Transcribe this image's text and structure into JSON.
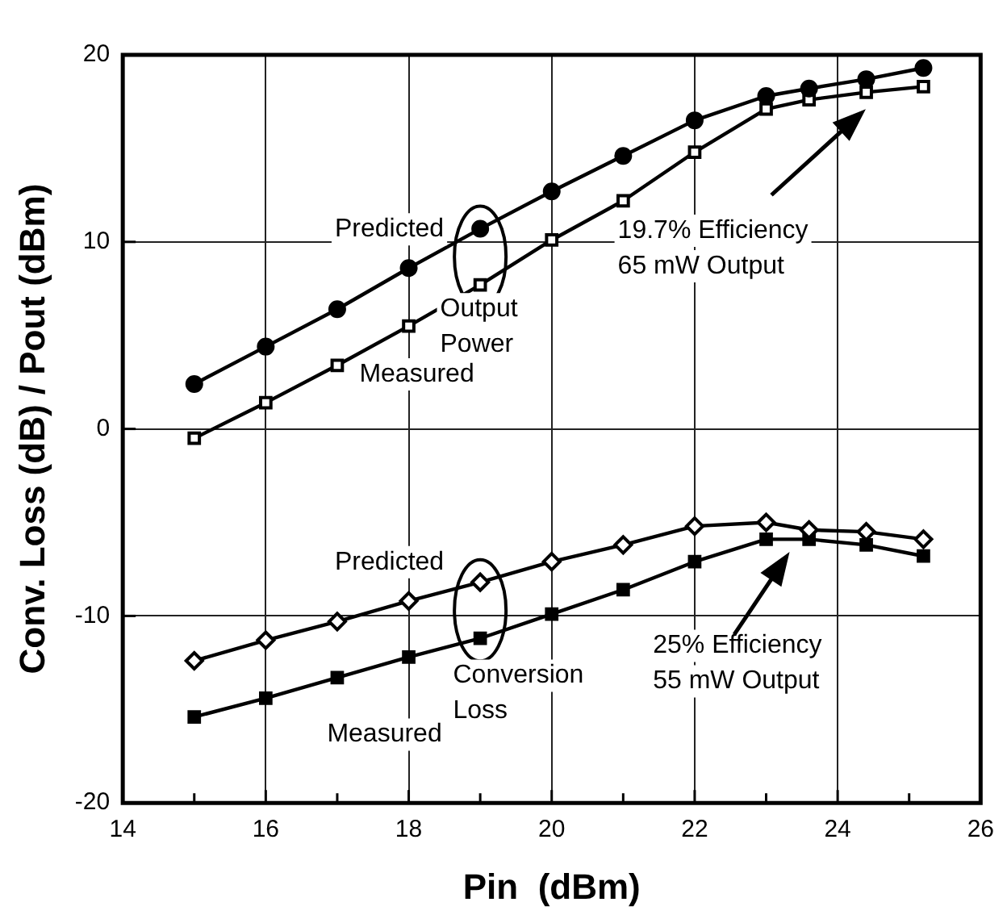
{
  "chart_data": {
    "type": "line",
    "xlabel": "Pin  (dBm)",
    "ylabel": "Conv. Loss (dB) / Pout (dBm)",
    "x": [
      15,
      16,
      17,
      18,
      19,
      20,
      21,
      22,
      23,
      23.6,
      24.4,
      25.2
    ],
    "series": [
      {
        "name": "Predicted",
        "color": "#000000",
        "marker": "circle",
        "values": [
          2.4,
          4.4,
          6.4,
          8.6,
          10.7,
          12.7,
          14.6,
          16.5,
          17.8,
          18.2,
          18.7,
          19.3
        ]
      },
      {
        "name": "Measured",
        "color": "#000000",
        "marker": "square",
        "values": [
          -0.5,
          1.4,
          3.4,
          5.5,
          7.7,
          10.1,
          12.2,
          14.8,
          17.1,
          17.6,
          18.0,
          18.3
        ]
      },
      {
        "name": "Predicted",
        "color": "#000000",
        "marker": "diamond",
        "values": [
          -12.4,
          -11.3,
          -10.3,
          -9.2,
          -8.2,
          -7.1,
          -6.2,
          -5.2,
          -5.0,
          -5.4,
          -5.5,
          -5.9
        ]
      },
      {
        "name": "Measured",
        "color": "#000000",
        "marker": "square",
        "values": [
          -15.4,
          -14.4,
          -13.3,
          -12.2,
          -11.2,
          -9.9,
          -8.6,
          -7.1,
          -5.9,
          -5.9,
          -6.2,
          -6.8
        ]
      }
    ],
    "xlim": [
      14,
      26
    ],
    "xticks": [
      14,
      {
        "value": 15,
        "label": null
      },
      16,
      {
        "value": 17,
        "label": null
      },
      18,
      {
        "value": 19,
        "label": null
      },
      20,
      {
        "value": 21,
        "label": null
      },
      22,
      {
        "value": 23,
        "label": null
      },
      24,
      {
        "value": 25,
        "label": null
      },
      26
    ],
    "ylim": [
      -20,
      20
    ],
    "yticks": [
      -20,
      -10,
      0,
      10,
      20
    ],
    "grid": true,
    "legend": false,
    "line_style": "solid",
    "annotations": [
      "Output\nPower",
      "19.7% Efficiency\n65 mW Output",
      "Conversion\nLoss",
      "25% Efficiency\n55 mW Output"
    ]
  }
}
